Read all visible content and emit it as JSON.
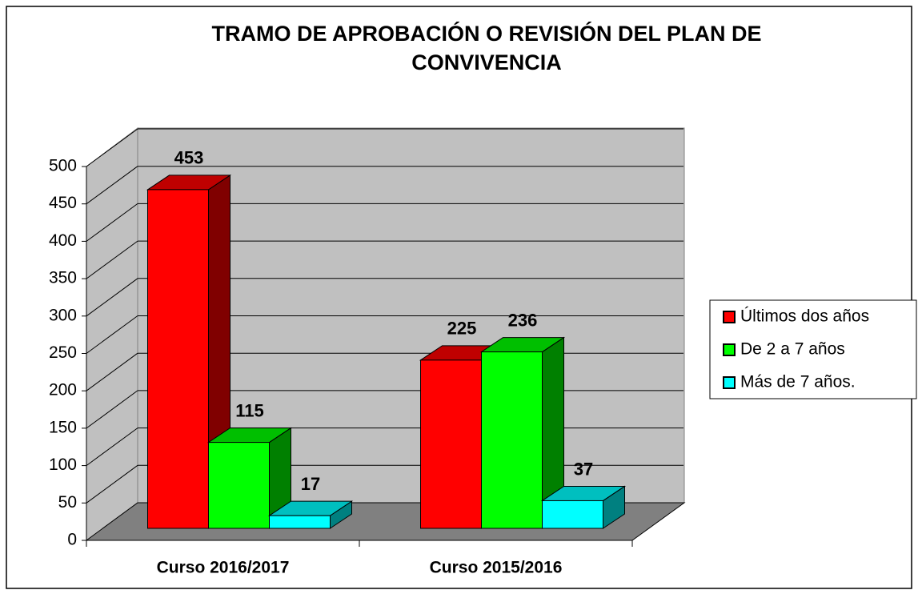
{
  "chart_data": {
    "type": "bar3d",
    "title": [
      "TRAMO DE APROBACIÓN O REVISIÓN DEL PLAN DE",
      "CONVIVENCIA"
    ],
    "categories": [
      "Curso 2016/2017",
      "Curso 2015/2016"
    ],
    "series": [
      {
        "name": "Últimos dos años",
        "color": "#ff0000",
        "values": [
          453,
          225
        ]
      },
      {
        "name": "De 2 a 7 años",
        "color": "#00ff00",
        "values": [
          115,
          236
        ]
      },
      {
        "name": "Más de 7 años.",
        "color": "#00ffff",
        "values": [
          17,
          37
        ]
      }
    ],
    "ylim": [
      0,
      500
    ],
    "yticks": [
      0,
      50,
      100,
      150,
      200,
      250,
      300,
      350,
      400,
      450,
      500
    ],
    "grid": true,
    "legend": "right"
  }
}
